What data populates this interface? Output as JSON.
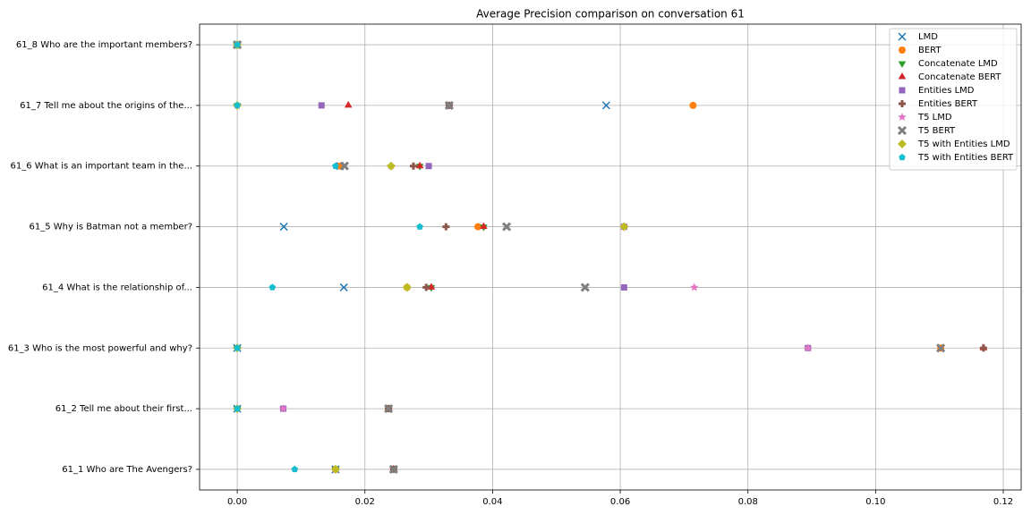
{
  "chart_data": {
    "type": "scatter",
    "title": "Average Precision comparison on conversation 61",
    "categories": [
      "61_1 Who are The Avengers?",
      "61_2 Tell me about their first...",
      "61_3 Who is the most powerful and why?",
      "61_4 What is the relationship of...",
      "61_5 Why is Batman not a member?",
      "61_6 What is an important team in the...",
      "61_7 Tell me about the origins of the...",
      "61_8 Who are the important members?"
    ],
    "xlim": [
      -0.0059,
      0.1228
    ],
    "xticks": [
      {
        "value": 0,
        "label": "0.00"
      },
      {
        "value": 0.02,
        "label": "0.02"
      },
      {
        "value": 0.04,
        "label": "0.04"
      },
      {
        "value": 0.06,
        "label": "0.06"
      },
      {
        "value": 0.08,
        "label": "0.08"
      },
      {
        "value": 0.1,
        "label": "0.10"
      },
      {
        "value": 0.12,
        "label": "0.12"
      }
    ],
    "grid": true,
    "legend": "upper right",
    "series": [
      {
        "name": "LMD",
        "color": "#1f77b4",
        "marker": "x",
        "values": [
          0.0154,
          0,
          0,
          0.0167,
          0.0073,
          0.0161,
          0.0578,
          0
        ]
      },
      {
        "name": "BERT",
        "color": "#ff7f0e",
        "marker": "circle",
        "values": [
          0.0154,
          0.0237,
          0.1102,
          0.0266,
          0.0377,
          0.0161,
          0.0714,
          0
        ]
      },
      {
        "name": "Concatenate LMD",
        "color": "#2ca02c",
        "marker": "triangle-down",
        "values": [
          0.0154,
          0,
          0,
          0.0304,
          0.0386,
          0.0286,
          0,
          0
        ]
      },
      {
        "name": "Concatenate BERT",
        "color": "#d62728",
        "marker": "triangle-up",
        "values": [
          0.0245,
          0.0237,
          0.1169,
          0.0304,
          0.0386,
          0.0286,
          0.0174,
          0
        ]
      },
      {
        "name": "Entities LMD",
        "color": "#9467bd",
        "marker": "square",
        "values": [
          0.0245,
          0.0072,
          0.0894,
          0.0606,
          0.0606,
          0.03,
          0.0132,
          0
        ]
      },
      {
        "name": "Entities BERT",
        "color": "#8c564b",
        "marker": "plus",
        "values": [
          0.0245,
          0.0237,
          0.1169,
          0.0296,
          0.0327,
          0.0276,
          0.0332,
          0
        ]
      },
      {
        "name": "T5 LMD",
        "color": "#e377c2",
        "marker": "star",
        "values": [
          0.0154,
          0.0072,
          0.0894,
          0.0716,
          0.0606,
          0.0241,
          0,
          0
        ]
      },
      {
        "name": "T5 BERT",
        "color": "#7f7f7f",
        "marker": "xfilled",
        "values": [
          0.0245,
          0.0237,
          0.1102,
          0.0545,
          0.0422,
          0.0168,
          0.0332,
          0
        ]
      },
      {
        "name": "T5 with Entities LMD",
        "color": "#bcbd22",
        "marker": "diamond",
        "values": [
          0.0154,
          0,
          0,
          0.0266,
          0.0606,
          0.0241,
          0,
          0
        ]
      },
      {
        "name": "T5 with Entities BERT",
        "color": "#17becf",
        "marker": "pentagon",
        "values": [
          0.009,
          0,
          0,
          0.0055,
          0.0286,
          0.0154,
          0,
          0
        ]
      }
    ]
  }
}
